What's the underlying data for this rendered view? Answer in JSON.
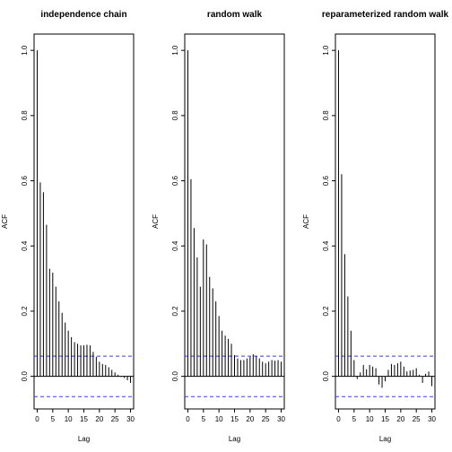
{
  "chart_data": [
    {
      "type": "bar",
      "title": "independence chain",
      "xlabel": "Lag",
      "ylabel": "ACF",
      "xlim": [
        -1,
        31
      ],
      "ylim": [
        -0.1,
        1.05
      ],
      "xticks": [
        "0",
        "5",
        "10",
        "15",
        "20",
        "25",
        "30"
      ],
      "yticks": [
        "0.0",
        "0.2",
        "0.4",
        "0.6",
        "0.8",
        "1.0"
      ],
      "ci": 0.062,
      "grid": false,
      "lags": [
        0,
        1,
        2,
        3,
        4,
        5,
        6,
        7,
        8,
        9,
        10,
        11,
        12,
        13,
        14,
        15,
        16,
        17,
        18,
        19,
        20,
        21,
        22,
        23,
        24,
        25,
        26,
        27,
        28,
        29,
        30
      ],
      "values": [
        1.0,
        0.595,
        0.565,
        0.465,
        0.33,
        0.318,
        0.275,
        0.23,
        0.195,
        0.165,
        0.14,
        0.12,
        0.105,
        0.1,
        0.095,
        0.095,
        0.097,
        0.095,
        0.075,
        0.06,
        0.045,
        0.038,
        0.035,
        0.028,
        0.02,
        0.012,
        0.005,
        -0.002,
        -0.005,
        -0.012,
        -0.02
      ]
    },
    {
      "type": "bar",
      "title": "random walk",
      "xlabel": "Lag",
      "ylabel": "ACF",
      "xlim": [
        -1,
        31
      ],
      "ylim": [
        -0.1,
        1.05
      ],
      "xticks": [
        "0",
        "5",
        "10",
        "15",
        "20",
        "25",
        "30"
      ],
      "yticks": [
        "0.0",
        "0.2",
        "0.4",
        "0.6",
        "0.8",
        "1.0"
      ],
      "ci": 0.062,
      "grid": false,
      "lags": [
        0,
        1,
        2,
        3,
        4,
        5,
        6,
        7,
        8,
        9,
        10,
        11,
        12,
        13,
        14,
        15,
        16,
        17,
        18,
        19,
        20,
        21,
        22,
        23,
        24,
        25,
        26,
        27,
        28,
        29,
        30
      ],
      "values": [
        1.0,
        0.605,
        0.455,
        0.365,
        0.275,
        0.42,
        0.405,
        0.305,
        0.27,
        0.23,
        0.185,
        0.14,
        0.125,
        0.115,
        0.1,
        0.065,
        0.055,
        0.05,
        0.05,
        0.055,
        0.06,
        0.068,
        0.062,
        0.055,
        0.045,
        0.04,
        0.045,
        0.05,
        0.048,
        0.05,
        0.045
      ]
    },
    {
      "type": "bar",
      "title": "reparameterized random walk",
      "xlabel": "Lag",
      "ylabel": "ACF",
      "xlim": [
        -1,
        31
      ],
      "ylim": [
        -0.1,
        1.05
      ],
      "xticks": [
        "0",
        "5",
        "10",
        "15",
        "20",
        "25",
        "30"
      ],
      "yticks": [
        "0.0",
        "0.2",
        "0.4",
        "0.6",
        "0.8",
        "1.0"
      ],
      "ci": 0.062,
      "grid": false,
      "lags": [
        0,
        1,
        2,
        3,
        4,
        5,
        6,
        7,
        8,
        9,
        10,
        11,
        12,
        13,
        14,
        15,
        16,
        17,
        18,
        19,
        20,
        21,
        22,
        23,
        24,
        25,
        26,
        27,
        28,
        29,
        30
      ],
      "values": [
        1.0,
        0.62,
        0.375,
        0.245,
        0.14,
        0.05,
        -0.008,
        0.012,
        0.035,
        0.022,
        0.035,
        0.03,
        0.025,
        -0.025,
        -0.035,
        -0.015,
        0.02,
        0.038,
        0.035,
        0.04,
        0.045,
        0.03,
        0.015,
        0.018,
        0.02,
        0.025,
        0.005,
        -0.02,
        0.008,
        0.015,
        -0.03
      ]
    }
  ],
  "style": {
    "bar_color": "#000000",
    "ci_color": "#3b3bf5",
    "axis_color": "#000000"
  }
}
